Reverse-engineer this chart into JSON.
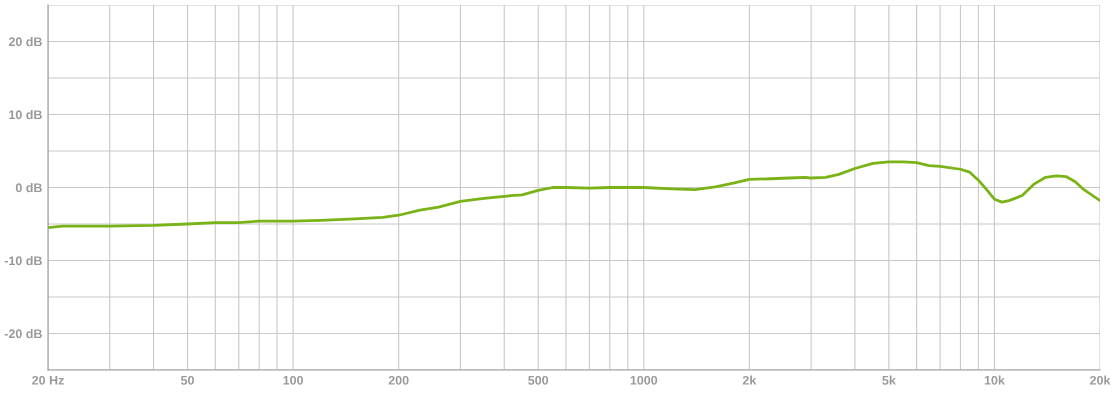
{
  "chart_data": {
    "type": "line",
    "log": "x",
    "grid": true,
    "line_style": "solid",
    "marker": "none",
    "xlim": [
      20,
      20000
    ],
    "ylim": [
      -25,
      25
    ],
    "xticks": [
      {
        "value": 20,
        "label": "20 Hz"
      },
      {
        "value": 30,
        "label": null
      },
      {
        "value": 40,
        "label": null
      },
      50,
      {
        "value": 60,
        "label": null
      },
      {
        "value": 70,
        "label": null
      },
      {
        "value": 80,
        "label": null
      },
      {
        "value": 90,
        "label": null
      },
      100,
      200,
      {
        "value": 300,
        "label": null
      },
      {
        "value": 400,
        "label": null
      },
      500,
      {
        "value": 600,
        "label": null
      },
      {
        "value": 700,
        "label": null
      },
      {
        "value": 800,
        "label": null
      },
      {
        "value": 900,
        "label": null
      },
      1000,
      {
        "value": 2000,
        "label": "2k"
      },
      {
        "value": 3000,
        "label": null
      },
      {
        "value": 4000,
        "label": null
      },
      {
        "value": 5000,
        "label": "5k"
      },
      {
        "value": 6000,
        "label": null
      },
      {
        "value": 7000,
        "label": null
      },
      {
        "value": 8000,
        "label": null
      },
      {
        "value": 9000,
        "label": null
      },
      {
        "value": 10000,
        "label": "10k"
      },
      {
        "value": 20000,
        "label": "20k"
      }
    ],
    "yticks": [
      {
        "value": -25,
        "label": null
      },
      {
        "value": -20,
        "label": "-20 dB"
      },
      {
        "value": -15,
        "label": null
      },
      {
        "value": -10,
        "label": "-10 dB"
      },
      {
        "value": -5,
        "label": null
      },
      {
        "value": 0,
        "label": "0 dB"
      },
      {
        "value": 5,
        "label": null
      },
      {
        "value": 10,
        "label": "10 dB"
      },
      {
        "value": 15,
        "label": null
      },
      {
        "value": 20,
        "label": "20 dB"
      },
      {
        "value": 25,
        "label": null
      }
    ],
    "series": [
      {
        "color": "#7ab317",
        "x": [
          20,
          22,
          30,
          40,
          50,
          60,
          70,
          80,
          100,
          120,
          150,
          180,
          200,
          230,
          260,
          300,
          350,
          400,
          450,
          500,
          550,
          600,
          700,
          800,
          1000,
          1200,
          1400,
          1600,
          1800,
          2000,
          2300,
          2600,
          2900,
          3000,
          3300,
          3600,
          4000,
          4500,
          5000,
          5500,
          6000,
          6500,
          7000,
          8000,
          8500,
          9000,
          9500,
          10000,
          10500,
          11000,
          12000,
          13000,
          14000,
          15000,
          16000,
          17000,
          18000,
          20000
        ],
        "values": [
          -5.5,
          -5.3,
          -5.3,
          -5.2,
          -5.0,
          -4.8,
          -4.8,
          -4.6,
          -4.6,
          -4.5,
          -4.3,
          -4.1,
          -3.8,
          -3.1,
          -2.7,
          -1.9,
          -1.5,
          -1.2,
          -1.0,
          -0.4,
          0,
          0,
          -0.1,
          0,
          0,
          -0.2,
          -0.3,
          0.1,
          0.6,
          1.1,
          1.2,
          1.3,
          1.4,
          1.3,
          1.4,
          1.8,
          2.6,
          3.3,
          3.5,
          3.5,
          3.4,
          3.0,
          2.9,
          2.5,
          2.1,
          1.0,
          -0.3,
          -1.6,
          -2.0,
          -1.8,
          -1.1,
          0.5,
          1.4,
          1.6,
          1.5,
          0.8,
          -0.3,
          -1.8
        ]
      }
    ]
  }
}
